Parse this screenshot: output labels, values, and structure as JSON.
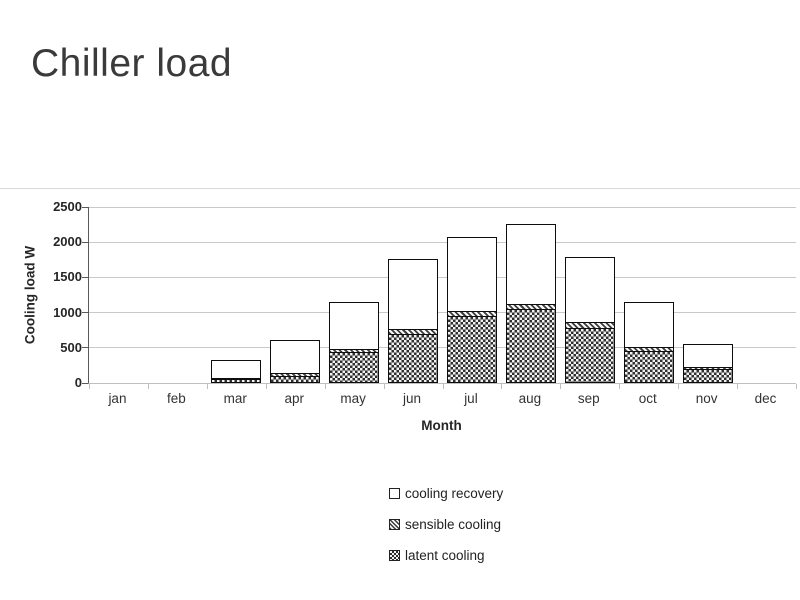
{
  "slide": {
    "title": "Chiller load"
  },
  "chart_data": {
    "type": "bar",
    "stacked": true,
    "title": "",
    "xlabel": "Month",
    "ylabel": "Cooling load W",
    "ylim": [
      0,
      2500
    ],
    "yticks": [
      0,
      500,
      1000,
      1500,
      2000,
      2500
    ],
    "grid": true,
    "legend_position": "bottom",
    "categories": [
      "jan",
      "feb",
      "mar",
      "apr",
      "may",
      "jun",
      "jul",
      "aug",
      "sep",
      "oct",
      "nov",
      "dec"
    ],
    "series": [
      {
        "name": "latent cooling",
        "pattern": "latent",
        "values": [
          0,
          0,
          50,
          100,
          440,
          700,
          950,
          1050,
          780,
          460,
          200,
          0
        ]
      },
      {
        "name": "sensible cooling",
        "pattern": "sensible",
        "values": [
          0,
          0,
          40,
          60,
          70,
          90,
          90,
          100,
          110,
          80,
          50,
          0
        ]
      },
      {
        "name": "cooling recovery",
        "pattern": "recovery",
        "values": [
          0,
          0,
          280,
          490,
          680,
          1010,
          1080,
          1150,
          940,
          650,
          350,
          0
        ]
      }
    ],
    "totals": [
      0,
      0,
      370,
      650,
      1190,
      1800,
      2120,
      2300,
      1830,
      1190,
      600,
      0
    ],
    "legend": [
      {
        "label": "cooling recovery",
        "pattern": "recovery"
      },
      {
        "label": "sensible cooling",
        "pattern": "sensible"
      },
      {
        "label": "latent cooling",
        "pattern": "latent"
      }
    ]
  }
}
